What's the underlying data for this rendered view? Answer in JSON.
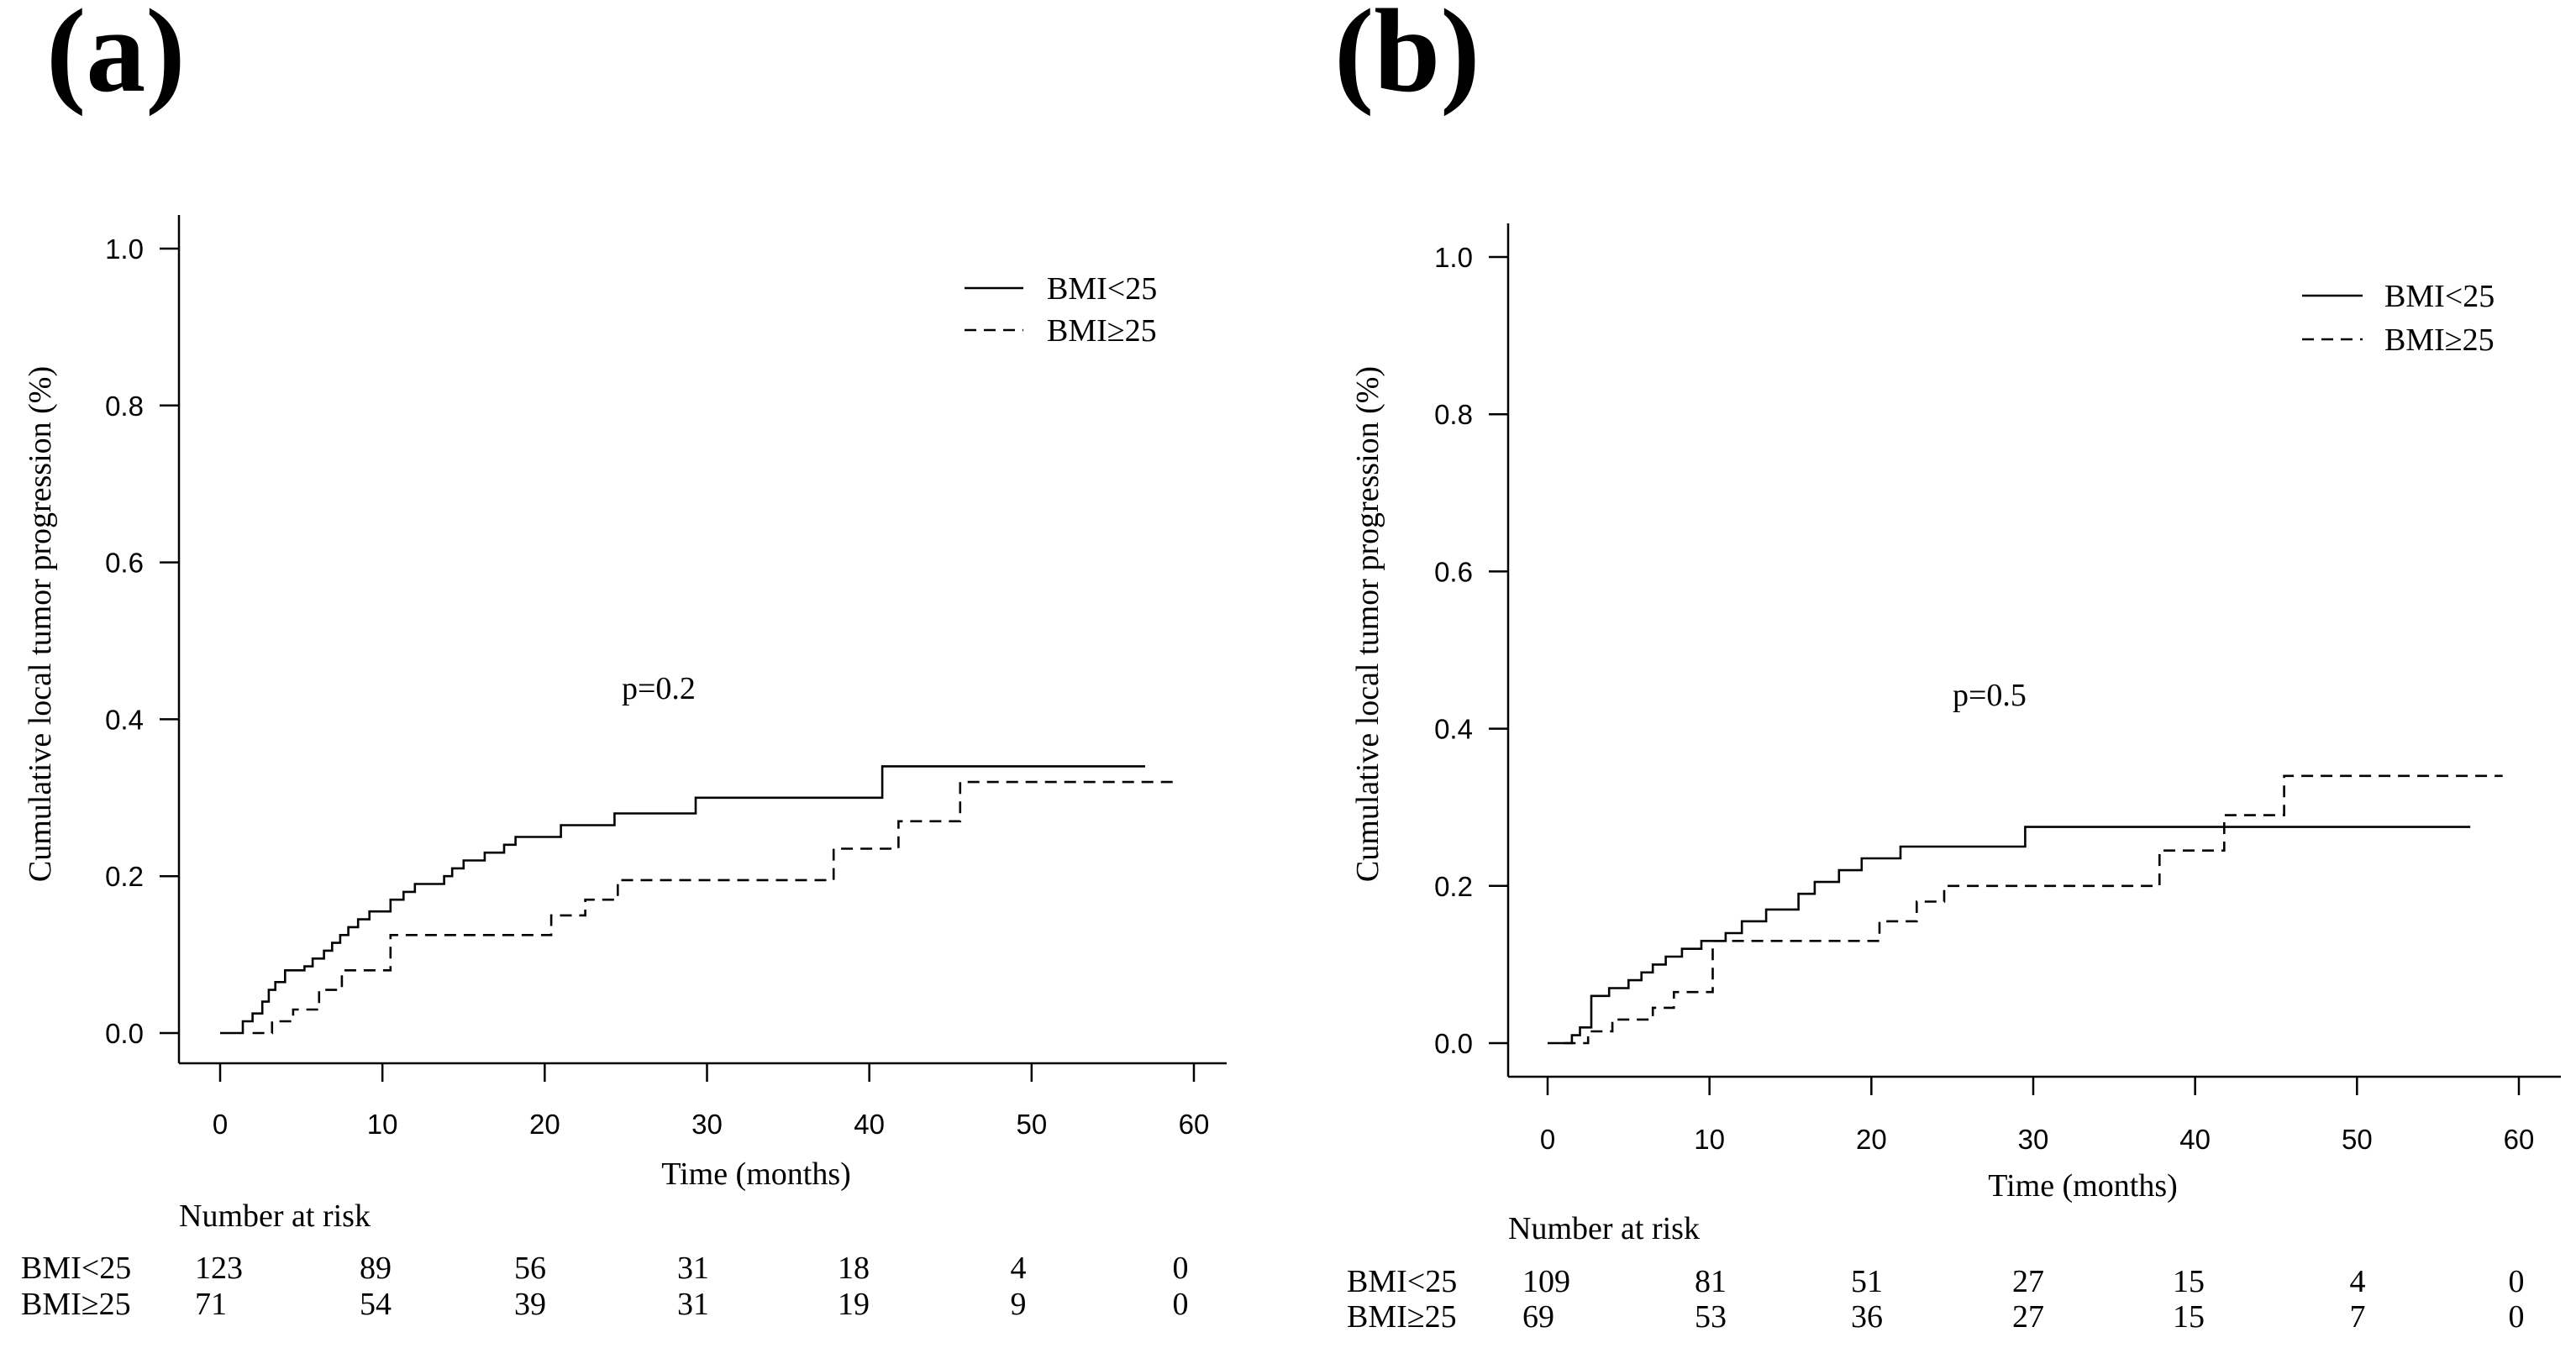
{
  "chart_data": [
    {
      "panel_label": "(a)",
      "type": "line",
      "step": true,
      "xlabel": "Time (months)",
      "ylabel": "Cumulative local tumor progression (%)",
      "xlim": [
        0,
        60
      ],
      "ylim": [
        0,
        1.0
      ],
      "xticks": [
        "0",
        "10",
        "20",
        "30",
        "40",
        "50",
        "60"
      ],
      "yticks": [
        "0.0",
        "0.2",
        "0.4",
        "0.6",
        "0.8",
        "1.0"
      ],
      "legend_position": "top-right",
      "annotation": "p=0.2",
      "series": [
        {
          "name": "BMI<25",
          "style": "solid",
          "x": [
            0,
            1.4,
            2.0,
            2.6,
            3.0,
            3.4,
            4.0,
            5.2,
            5.7,
            6.4,
            6.9,
            7.4,
            7.9,
            8.5,
            9.2,
            10.5,
            11.3,
            12.0,
            13.8,
            14.3,
            15.0,
            16.3,
            17.5,
            18.2,
            21.0,
            24.3,
            29.3,
            40.8,
            57.0
          ],
          "y": [
            0,
            0.015,
            0.025,
            0.04,
            0.055,
            0.065,
            0.08,
            0.085,
            0.095,
            0.105,
            0.115,
            0.125,
            0.135,
            0.145,
            0.155,
            0.17,
            0.18,
            0.19,
            0.2,
            0.21,
            0.22,
            0.23,
            0.24,
            0.25,
            0.265,
            0.28,
            0.3,
            0.34,
            0.34
          ]
        },
        {
          "name": "BMI≥25",
          "style": "dashed",
          "x": [
            2.0,
            3.2,
            4.5,
            6.1,
            7.5,
            10.5,
            20.4,
            22.5,
            24.5,
            37.8,
            41.8,
            45.6,
            59.0
          ],
          "y": [
            0,
            0.015,
            0.03,
            0.055,
            0.08,
            0.125,
            0.15,
            0.17,
            0.195,
            0.235,
            0.27,
            0.32,
            0.32
          ]
        }
      ],
      "risk_table": {
        "title": "Number at risk",
        "times": [
          0,
          10,
          20,
          30,
          40,
          50,
          60
        ],
        "rows": [
          {
            "label": "BMI<25",
            "values": [
              "123",
              "89",
              "56",
              "31",
              "18",
              "4",
              "0"
            ]
          },
          {
            "label": "BMI≥25",
            "values": [
              "71",
              "54",
              "39",
              "31",
              "19",
              "9",
              "0"
            ]
          }
        ]
      }
    },
    {
      "panel_label": "(b)",
      "type": "line",
      "step": true,
      "xlabel": "Time  (months)",
      "ylabel": "Cumulative  local  tumor  progression  (%)",
      "xlim": [
        0,
        60
      ],
      "ylim": [
        0,
        1.0
      ],
      "xticks": [
        "0",
        "10",
        "20",
        "30",
        "40",
        "50",
        "60"
      ],
      "yticks": [
        "0.0",
        "0.2",
        "0.4",
        "0.6",
        "0.8",
        "1.0"
      ],
      "legend_position": "top-right",
      "annotation": "p=0.5",
      "series": [
        {
          "name": "BMI<25",
          "style": "solid",
          "x": [
            0,
            1.5,
            2.0,
            2.7,
            3.8,
            5.0,
            5.8,
            6.5,
            7.3,
            8.3,
            9.5,
            11.0,
            12.0,
            13.5,
            15.5,
            16.5,
            18.0,
            19.4,
            21.8,
            29.5,
            57.0
          ],
          "y": [
            0,
            0.01,
            0.02,
            0.06,
            0.07,
            0.08,
            0.09,
            0.1,
            0.11,
            0.12,
            0.13,
            0.14,
            0.155,
            0.17,
            0.19,
            0.205,
            0.22,
            0.235,
            0.25,
            0.275,
            0.275
          ]
        },
        {
          "name": "BMI≥25",
          "style": "dashed",
          "x": [
            1.0,
            2.5,
            4.0,
            6.5,
            7.8,
            10.2,
            20.5,
            22.8,
            24.5,
            37.8,
            41.8,
            45.5,
            59.0
          ],
          "y": [
            0,
            0.015,
            0.03,
            0.045,
            0.065,
            0.13,
            0.155,
            0.18,
            0.2,
            0.245,
            0.29,
            0.34,
            0.34
          ]
        }
      ],
      "risk_table": {
        "title": "Number at risk",
        "times": [
          0,
          10,
          20,
          30,
          40,
          50,
          60
        ],
        "rows": [
          {
            "label": "BMI<25",
            "values": [
              "109",
              "81",
              "51",
              "27",
              "15",
              "4",
              "0"
            ]
          },
          {
            "label": "BMI≥25",
            "values": [
              "69",
              "53",
              "36",
              "27",
              "15",
              "7",
              "0"
            ]
          }
        ]
      }
    }
  ]
}
